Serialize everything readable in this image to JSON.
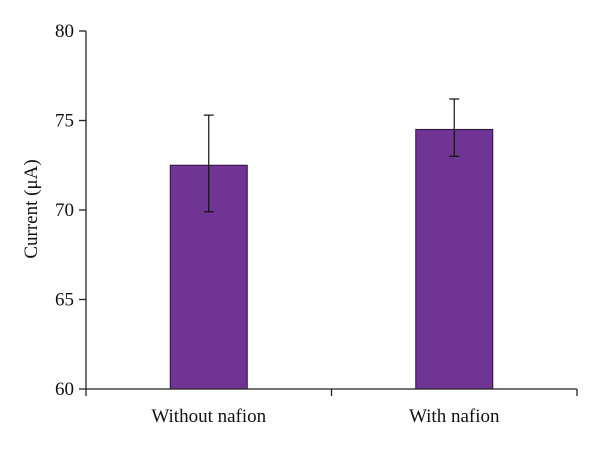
{
  "chart_data": {
    "type": "bar",
    "title": "",
    "xlabel": "",
    "ylabel": "Current (μA)",
    "categories": [
      "Without nafion",
      "With nafion"
    ],
    "values": [
      72.5,
      74.5
    ],
    "error_low": [
      69.9,
      73.0
    ],
    "error_high": [
      75.3,
      76.2
    ],
    "ylim": [
      60,
      80
    ],
    "yticks": [
      60,
      65,
      70,
      75,
      80
    ],
    "grid": false,
    "legend": "none",
    "bar_color": "#703594",
    "axis_color": "#222222"
  }
}
